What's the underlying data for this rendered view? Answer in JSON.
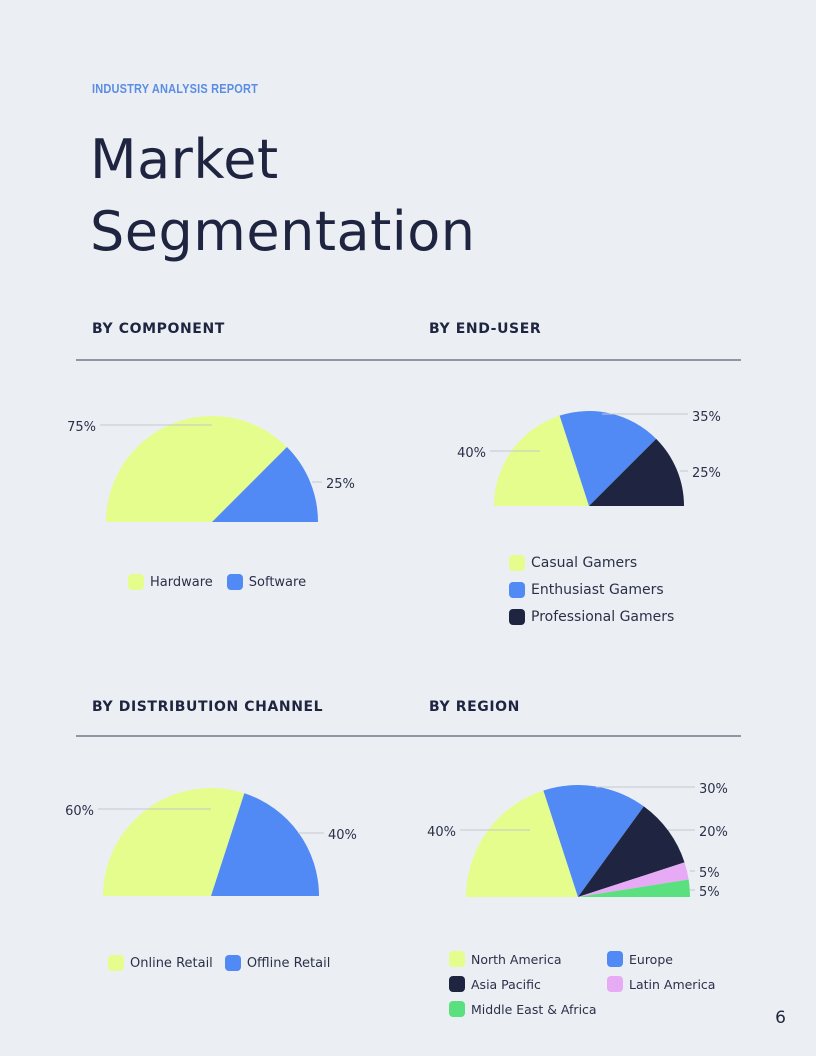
{
  "header": {
    "kicker": "INDUSTRY ANALYSIS REPORT",
    "title_line1": "Market",
    "title_line2": "Segmentation"
  },
  "sections": {
    "component": "BY COMPONENT",
    "end_user": "BY END-USER",
    "distribution": "BY DISTRIBUTION CHANNEL",
    "region": "BY REGION"
  },
  "colors": {
    "lime": "#e5fd8c",
    "blue": "#5189f5",
    "navy": "#1f2540",
    "pink": "#e7aaf5",
    "green": "#5be07f"
  },
  "chart_data": [
    {
      "id": "component",
      "type": "pie",
      "title": "BY COMPONENT",
      "categories": [
        "Hardware",
        "Software"
      ],
      "values": [
        75,
        25
      ],
      "labels": [
        "75%",
        "25%"
      ],
      "colors": [
        "#e5fd8c",
        "#5189f5"
      ]
    },
    {
      "id": "end_user",
      "type": "pie",
      "title": "BY END-USER",
      "categories": [
        "Casual Gamers",
        "Enthusiast Gamers",
        "Professional Gamers"
      ],
      "values": [
        40,
        35,
        25
      ],
      "labels": [
        "40%",
        "35%",
        "25%"
      ],
      "colors": [
        "#e5fd8c",
        "#5189f5",
        "#1f2540"
      ]
    },
    {
      "id": "distribution",
      "type": "pie",
      "title": "BY DISTRIBUTION CHANNEL",
      "categories": [
        "Online Retail",
        "Offline Retail"
      ],
      "values": [
        60,
        40
      ],
      "labels": [
        "60%",
        "40%"
      ],
      "colors": [
        "#e5fd8c",
        "#5189f5"
      ]
    },
    {
      "id": "region",
      "type": "pie",
      "title": "BY REGION",
      "categories": [
        "North America",
        "Europe",
        "Asia Pacific",
        "Latin America",
        "Middle East & Africa"
      ],
      "values": [
        40,
        30,
        20,
        5,
        5
      ],
      "labels": [
        "40%",
        "30%",
        "20%",
        "5%",
        "5%"
      ],
      "colors": [
        "#e5fd8c",
        "#5189f5",
        "#1f2540",
        "#e7aaf5",
        "#5be07f"
      ]
    }
  ],
  "page_number": "6"
}
